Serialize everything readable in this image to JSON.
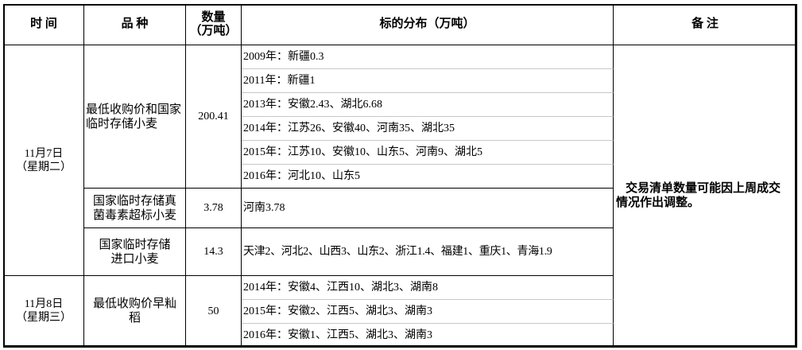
{
  "header": {
    "time": "时 间",
    "variety": "品 种",
    "quantity": "数量\n（万吨）",
    "distribution": "标的分布（万吨）",
    "remark": "备 注"
  },
  "groups": [
    {
      "date": "11月7日\n（星期二）",
      "items": [
        {
          "variety": "最低收购价和国家临时存储小麦",
          "quantity": "200.41",
          "distribution": [
            "2009年：新疆0.3",
            "2011年：新疆1",
            "2013年：安徽2.43、湖北6.68",
            "2014年：江苏26、安徽40、河南35、湖北35",
            "2015年：江苏10、安徽10、山东5、河南9、湖北5",
            "2016年：河北10、山东5"
          ]
        },
        {
          "variety": "国家临时存储真菌毒素超标小麦",
          "quantity": "3.78",
          "distribution": [
            "河南3.78"
          ]
        },
        {
          "variety": "国家临时存储进口小麦",
          "quantity": "14.3",
          "distribution": [
            "天津2、河北2、山西3、山东2、浙江1.4、福建1、重庆1、青海1.9"
          ]
        }
      ]
    },
    {
      "date": "11月8日\n（星期三）",
      "items": [
        {
          "variety": "最低收购价早籼稻",
          "quantity": "50",
          "distribution": [
            "2014年：安徽4、江西10、湖北3、湖南8",
            "2015年：安徽2、江西5、湖北3、湖南3",
            "2016年：安徽1、江西5、湖北3、湖南3"
          ]
        }
      ]
    }
  ],
  "remark": "交易清单数量可能因上周成交情况作出调整。"
}
